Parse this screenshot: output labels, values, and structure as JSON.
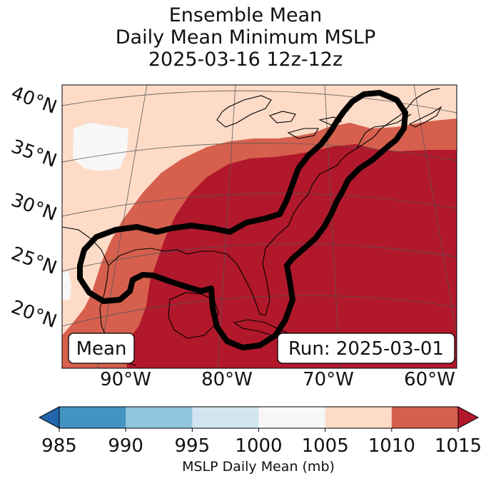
{
  "title": {
    "line1": "Ensemble Mean",
    "line2": "Daily Mean Minimum MSLP",
    "line3": "2025-03-16 12z-12z"
  },
  "chart_data": {
    "type": "heatmap",
    "projection": "conic map",
    "lat_range": [
      15,
      42
    ],
    "lon_range": [
      -97,
      -58
    ],
    "lat_ticks": [
      "40°N",
      "35°N",
      "30°N",
      "25°N",
      "20°N"
    ],
    "lon_ticks": [
      "90°W",
      "80°W",
      "70°W",
      "60°W"
    ],
    "field": "MSLP daily mean minimum",
    "contour_outline": "black outline around the southeastern US, Gulf of Mexico and US East Coast corridor",
    "colorbar": {
      "label": "MSLP Daily Mean (mb)",
      "ticks": [
        "985",
        "990",
        "995",
        "1000",
        "1005",
        "1010",
        "1015"
      ],
      "bins": [
        {
          "range": "<985",
          "color": "#2166ac"
        },
        {
          "range": "985-990",
          "color": "#4393c3"
        },
        {
          "range": "990-995",
          "color": "#92c5de"
        },
        {
          "range": "995-1000",
          "color": "#d1e5f0"
        },
        {
          "range": "1000-1005",
          "color": "#f7f7f7"
        },
        {
          "range": "1005-1010",
          "color": "#fddbc7"
        },
        {
          "range": "1010-1015",
          "color": "#d6604d"
        },
        {
          "range": ">1015",
          "color": "#b2182b"
        }
      ],
      "extend": "both"
    }
  },
  "annotations": {
    "left_box": "Mean",
    "right_box": "Run: 2025-03-01"
  }
}
